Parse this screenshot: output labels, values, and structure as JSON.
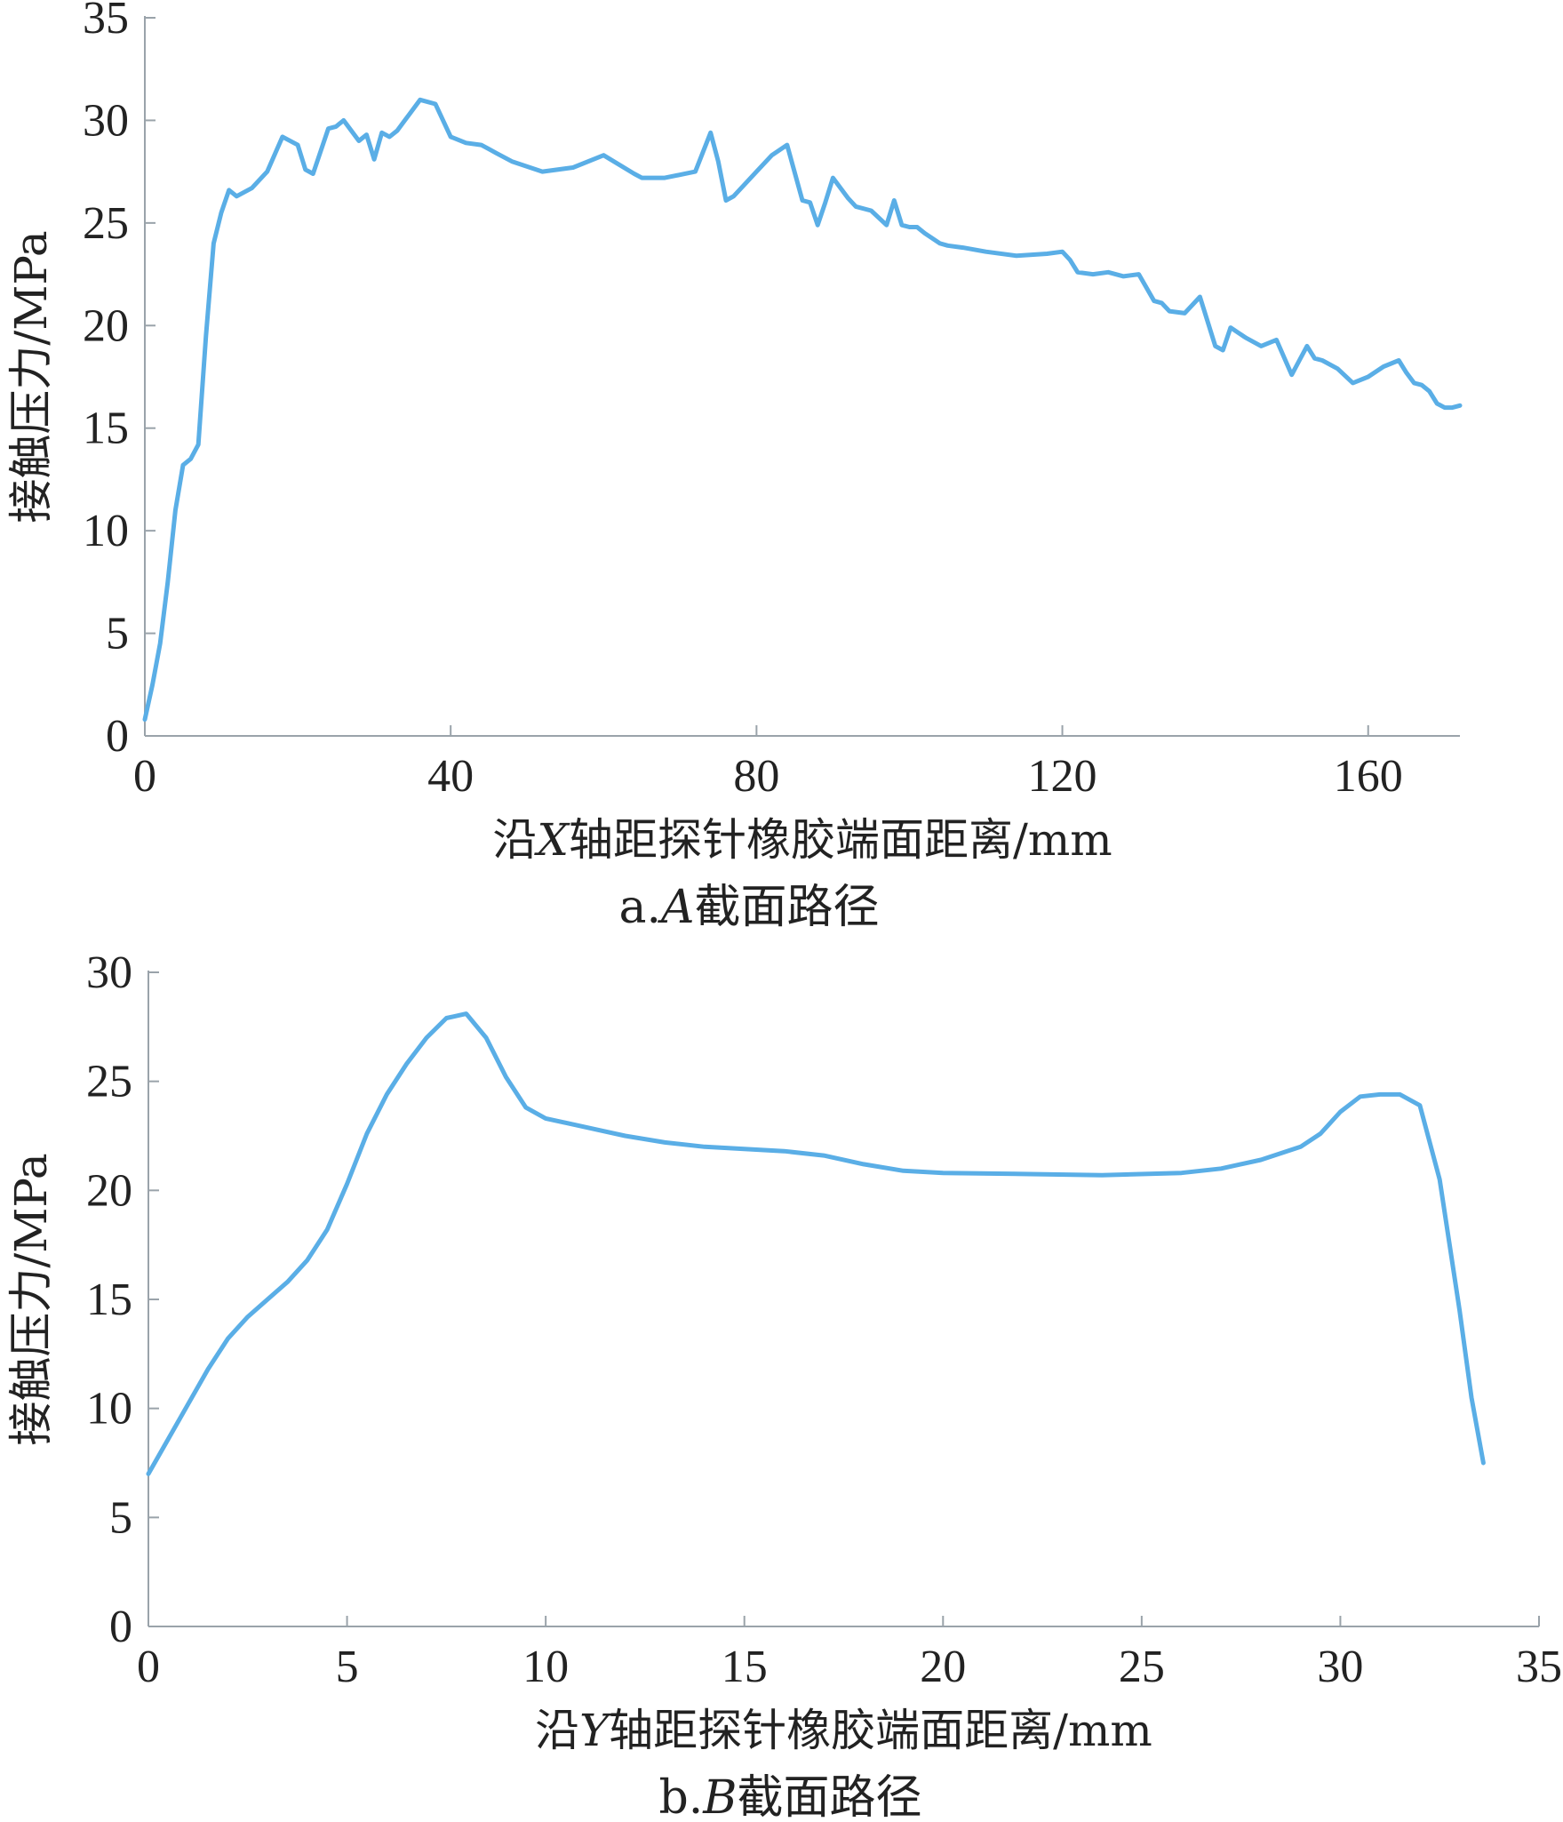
{
  "chart_data": [
    {
      "type": "line",
      "caption_prefix": "a.",
      "caption_italic": "A",
      "caption_suffix": "截面路径",
      "xlabel_prefix": "沿",
      "xlabel_italic": "X",
      "xlabel_suffix": "轴距探针橡胶端面距离/mm",
      "ylabel": "接触压力/MPa",
      "xlim": [
        0,
        172
      ],
      "ylim": [
        0,
        35
      ],
      "xticks": [
        0,
        40,
        80,
        120,
        160
      ],
      "yticks": [
        0,
        5,
        10,
        15,
        20,
        25,
        30,
        35
      ],
      "grid": false,
      "color": "#5aaee6",
      "series": [
        {
          "x": [
            0,
            1,
            2,
            3,
            4,
            5,
            6,
            7,
            8,
            9,
            10,
            11,
            12,
            13,
            14,
            16,
            18,
            20,
            21,
            22,
            24,
            25,
            26,
            28,
            29,
            30,
            31,
            32,
            33,
            34,
            35,
            36,
            38,
            40,
            42,
            44,
            45,
            46,
            48,
            52,
            56,
            60,
            64,
            65,
            66,
            68,
            72,
            74,
            75,
            76,
            77,
            78,
            80,
            82,
            84,
            86,
            87,
            88,
            89,
            90,
            92,
            93,
            95,
            97,
            98,
            99,
            100,
            101,
            102,
            104,
            105,
            107,
            110,
            114,
            118,
            120,
            121,
            122,
            124,
            126,
            128,
            130,
            132,
            133,
            134,
            136,
            138,
            140,
            141,
            142,
            144,
            146,
            148,
            150,
            151,
            152,
            153,
            154,
            156,
            158,
            160,
            162,
            164,
            165,
            166,
            167,
            168,
            169,
            170,
            171,
            172
          ],
          "y": [
            0.8,
            2.5,
            4.5,
            7.5,
            11,
            13.2,
            13.5,
            14.2,
            19.5,
            24,
            25.5,
            26.6,
            26.3,
            26.5,
            26.7,
            27.5,
            29.2,
            28.8,
            27.6,
            27.4,
            29.6,
            29.7,
            30.0,
            29.0,
            29.3,
            28.1,
            29.4,
            29.2,
            29.5,
            30.0,
            30.5,
            31.0,
            30.8,
            29.2,
            28.9,
            28.8,
            28.6,
            28.4,
            28.0,
            27.5,
            27.7,
            28.3,
            27.4,
            27.2,
            27.2,
            27.2,
            27.5,
            29.4,
            28.0,
            26.1,
            26.3,
            26.7,
            27.5,
            28.3,
            28.8,
            26.1,
            26.0,
            24.9,
            26.0,
            27.2,
            26.2,
            25.8,
            25.6,
            24.9,
            26.1,
            24.9,
            24.8,
            24.8,
            24.5,
            24.0,
            23.9,
            23.8,
            23.6,
            23.4,
            23.5,
            23.6,
            23.2,
            22.6,
            22.5,
            22.6,
            22.4,
            22.5,
            21.2,
            21.1,
            20.7,
            20.6,
            21.4,
            19.0,
            18.8,
            19.9,
            19.4,
            19.0,
            19.3,
            17.6,
            18.3,
            19.0,
            18.4,
            18.3,
            17.9,
            17.2,
            17.5,
            18.0,
            18.3,
            17.7,
            17.2,
            17.1,
            16.8,
            16.2,
            16.0,
            16.0,
            16.1
          ]
        }
      ]
    },
    {
      "type": "line",
      "caption_prefix": "b.",
      "caption_italic": "B",
      "caption_suffix": "截面路径",
      "xlabel_prefix": "沿",
      "xlabel_italic": "Y",
      "xlabel_suffix": "轴距探针橡胶端面距离/mm",
      "ylabel": "接触压力/MPa",
      "xlim": [
        0,
        35
      ],
      "ylim": [
        0,
        30
      ],
      "xticks": [
        0,
        5,
        10,
        15,
        20,
        25,
        30,
        35
      ],
      "yticks": [
        0,
        5,
        10,
        15,
        20,
        25,
        30
      ],
      "grid": false,
      "color": "#5aaee6",
      "series": [
        {
          "x": [
            0,
            0.5,
            1,
            1.5,
            2,
            2.5,
            3,
            3.5,
            4,
            4.5,
            5,
            5.5,
            6,
            6.5,
            7,
            7.5,
            8,
            8.5,
            9,
            9.5,
            10,
            11,
            12,
            13,
            14,
            15,
            16,
            17,
            18,
            19,
            20,
            22,
            24,
            26,
            27,
            28,
            29,
            29.5,
            30,
            30.5,
            31,
            31.5,
            32,
            32.5,
            33,
            33.3,
            33.6
          ],
          "y": [
            7.0,
            8.6,
            10.2,
            11.8,
            13.2,
            14.2,
            15.0,
            15.8,
            16.8,
            18.2,
            20.3,
            22.6,
            24.4,
            25.8,
            27.0,
            27.9,
            28.1,
            27.0,
            25.2,
            23.8,
            23.3,
            22.9,
            22.5,
            22.2,
            22.0,
            21.9,
            21.8,
            21.6,
            21.2,
            20.9,
            20.8,
            20.75,
            20.7,
            20.8,
            21.0,
            21.4,
            22.0,
            22.6,
            23.6,
            24.3,
            24.4,
            24.4,
            23.9,
            20.5,
            14.5,
            10.5,
            7.5
          ]
        }
      ]
    }
  ]
}
